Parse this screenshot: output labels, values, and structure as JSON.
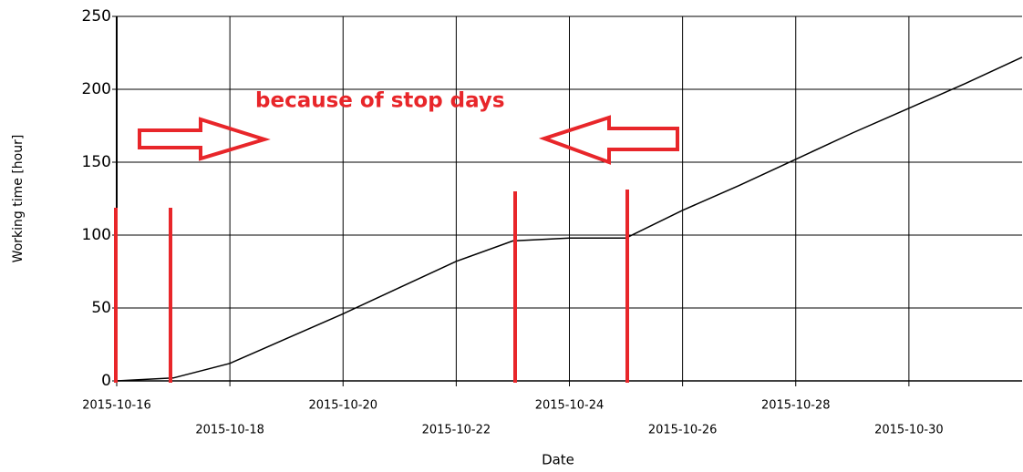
{
  "chart_data": {
    "type": "line",
    "x_label": "Date",
    "y_label": "Working time [hour]",
    "annotation": "because of stop days",
    "x": [
      "2015-10-16",
      "2015-10-17",
      "2015-10-18",
      "2015-10-19",
      "2015-10-20",
      "2015-10-21",
      "2015-10-22",
      "2015-10-23",
      "2015-10-24",
      "2015-10-25",
      "2015-10-26",
      "2015-10-27",
      "2015-10-28",
      "2015-10-29",
      "2015-10-30",
      "2015-10-31",
      "2015-11-01"
    ],
    "series": [
      {
        "name": "Working time",
        "color": "#000000",
        "values": [
          0,
          2,
          12,
          29,
          46,
          64,
          82,
          96,
          98,
          98,
          117,
          134,
          152,
          170,
          187,
          204,
          222
        ]
      }
    ],
    "xlim": [
      "2015-10-16",
      "2015-11-01"
    ],
    "xticks": [
      "2015-10-16",
      "2015-10-18",
      "2015-10-20",
      "2015-10-22",
      "2015-10-24",
      "2015-10-26",
      "2015-10-28",
      "2015-10-30"
    ],
    "ylim": [
      0,
      250
    ],
    "yticks": [
      0,
      50,
      100,
      150,
      200,
      250
    ],
    "grid": true
  }
}
